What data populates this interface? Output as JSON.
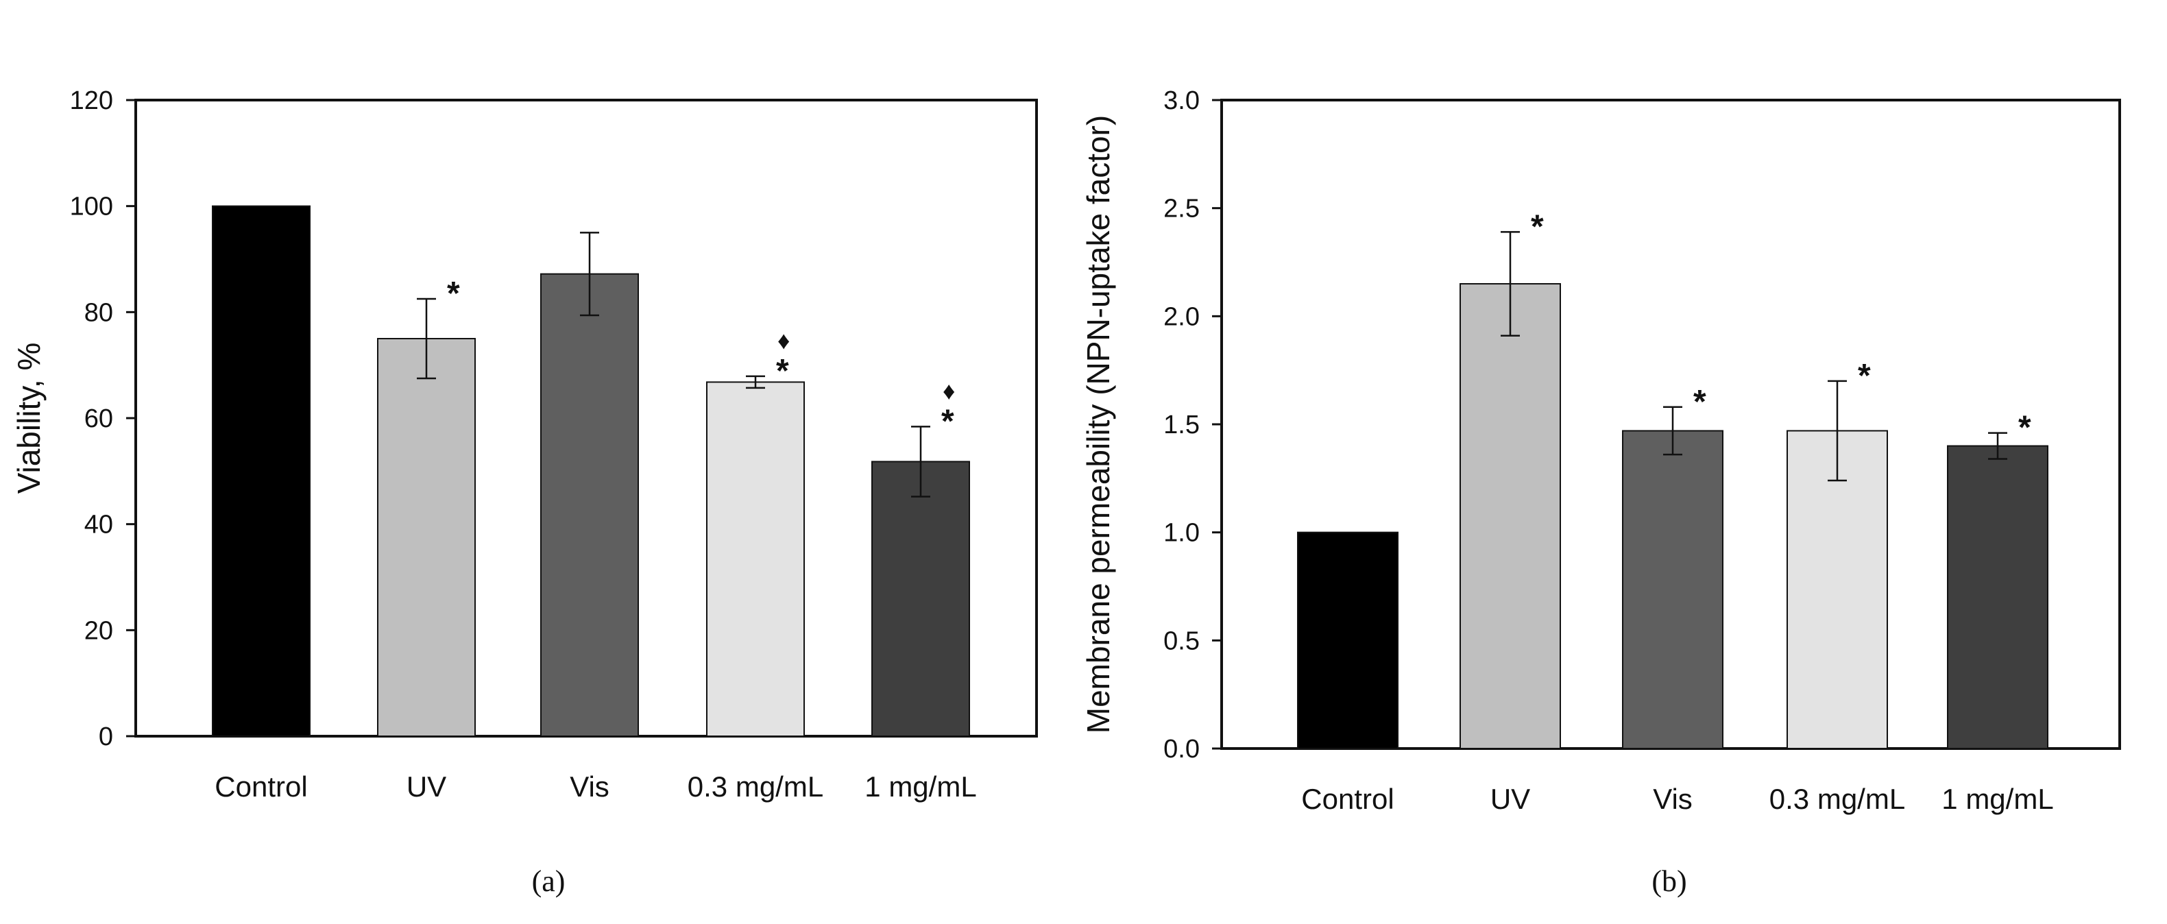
{
  "chart_data": [
    {
      "type": "bar",
      "panel_label": "(a)",
      "ylabel": "Viability, %",
      "xlabel": "",
      "ylim": [
        0,
        120
      ],
      "yticks": [
        0,
        20,
        40,
        60,
        80,
        100,
        120
      ],
      "ytick_labels": [
        "0",
        "20",
        "40",
        "60",
        "80",
        "100",
        "120"
      ],
      "categories": [
        "Control",
        "UV",
        "Vis",
        "0.3 mg/mL",
        "1 mg/mL"
      ],
      "values": [
        100,
        75,
        87.2,
        66.8,
        51.8
      ],
      "errors": [
        0,
        7.5,
        7.8,
        1.1,
        6.6
      ],
      "colors": [
        "#000000",
        "#bfbfbf",
        "#5f5f5f",
        "#e3e3e3",
        "#3f3f3f"
      ],
      "markers": [
        "",
        "*",
        "",
        "*",
        "*"
      ],
      "secondary_markers": [
        "",
        "",
        "",
        "♦",
        "♦"
      ]
    },
    {
      "type": "bar",
      "panel_label": "(b)",
      "ylabel": "Membrane permeability (NPN-uptake factor)",
      "xlabel": "",
      "ylim": [
        0,
        3
      ],
      "yticks": [
        0,
        0.5,
        1,
        1.5,
        2,
        2.5,
        3
      ],
      "ytick_labels": [
        "0.0",
        "0.5",
        "1.0",
        "1.5",
        "2.0",
        "2.5",
        "3.0"
      ],
      "categories": [
        "Control",
        "UV",
        "Vis",
        "0.3 mg/mL",
        "1 mg/mL"
      ],
      "values": [
        1.0,
        2.15,
        1.47,
        1.47,
        1.4
      ],
      "errors": [
        0,
        0.24,
        0.11,
        0.23,
        0.06
      ],
      "colors": [
        "#000000",
        "#bfbfbf",
        "#5f5f5f",
        "#e3e3e3",
        "#3f3f3f"
      ],
      "markers": [
        "",
        "*",
        "*",
        "*",
        "*"
      ],
      "secondary_markers": [
        "",
        "",
        "",
        "",
        ""
      ]
    }
  ]
}
